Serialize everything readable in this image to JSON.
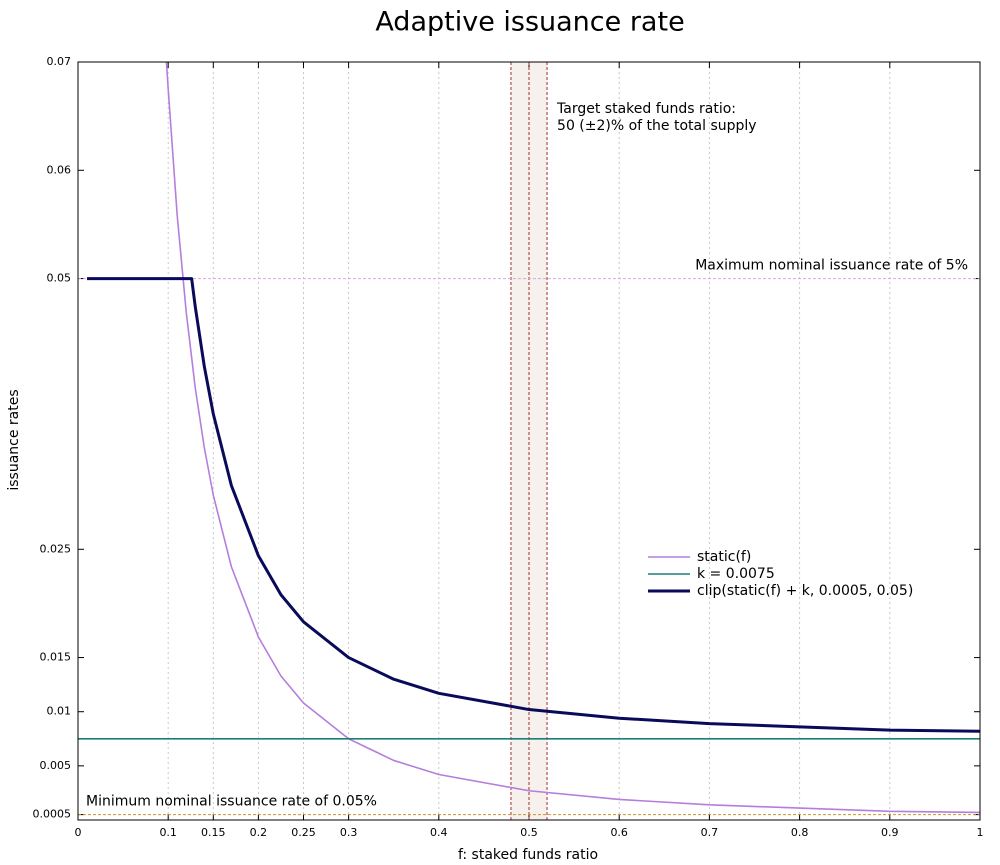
{
  "chart_data": {
    "type": "line",
    "title": "Adaptive issuance rate",
    "xlabel": "f: staked funds ratio",
    "ylabel": "issuance rates",
    "xlim": [
      0,
      1
    ],
    "ylim": [
      0,
      0.07
    ],
    "xticks": [
      0,
      0.1,
      0.15,
      0.2,
      0.25,
      0.3,
      0.4,
      0.5,
      0.6,
      0.7,
      0.8,
      0.9,
      1
    ],
    "yticks": [
      0.0005,
      0.005,
      0.01,
      0.015,
      0.025,
      0.05,
      0.06,
      0.07
    ],
    "grid": "x",
    "legend": "center right",
    "series": [
      {
        "name": "static(f)",
        "color": "#b57edc",
        "x": [
          0.098,
          0.1,
          0.11,
          0.12,
          0.13,
          0.14,
          0.15,
          0.17,
          0.2,
          0.225,
          0.25,
          0.3,
          0.35,
          0.4,
          0.5,
          0.6,
          0.7,
          0.8,
          0.9,
          1
        ],
        "values": [
          0.07,
          0.0675,
          0.0558,
          0.0469,
          0.0399,
          0.0344,
          0.03,
          0.0234,
          0.0169,
          0.0133,
          0.0108,
          0.0075,
          0.0055,
          0.0042,
          0.0027,
          0.0019,
          0.0014,
          0.0011,
          0.0008,
          0.0007
        ]
      },
      {
        "name": "k = 0.0075",
        "color": "#1a7f7a",
        "x": [
          0,
          1
        ],
        "values": [
          0.0075,
          0.0075
        ]
      },
      {
        "name": "clip(static(f) + k, 0.0005, 0.05)",
        "color": "#0a0a5a",
        "x": [
          0.01,
          0.126,
          0.13,
          0.14,
          0.15,
          0.17,
          0.2,
          0.225,
          0.25,
          0.3,
          0.35,
          0.4,
          0.5,
          0.6,
          0.7,
          0.8,
          0.9,
          1
        ],
        "values": [
          0.05,
          0.05,
          0.0474,
          0.0419,
          0.0375,
          0.0309,
          0.0244,
          0.0208,
          0.0183,
          0.015,
          0.013,
          0.0117,
          0.0102,
          0.0094,
          0.0089,
          0.0086,
          0.0083,
          0.0082
        ]
      }
    ],
    "hlines": [
      {
        "value": 0.05,
        "color": "#d9a8de",
        "label": "Maximum nominal issuance rate of 5%"
      },
      {
        "value": 0.0005,
        "color": "#c8962a",
        "label": "Minimum nominal issuance rate of 0.05%"
      }
    ],
    "vlines": {
      "values": [
        0.48,
        0.5,
        0.52
      ],
      "color": "#a03030",
      "label": [
        "Target staked funds ratio:",
        "50 (±2)% of the total supply"
      ]
    }
  }
}
